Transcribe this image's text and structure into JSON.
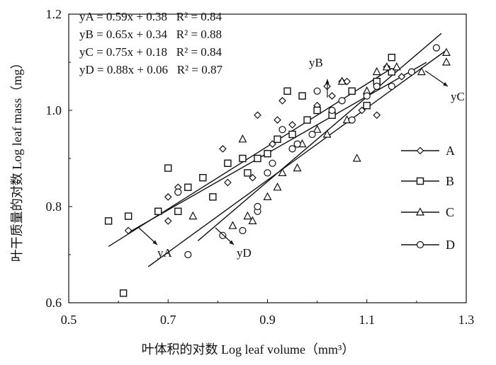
{
  "chart_data": {
    "type": "scatter",
    "xlabel": "叶体积的对数  Log leaf volume（mm³）",
    "ylabel": "叶干质量的对数  Log leaf mass（mg）",
    "xlim": [
      0.5,
      1.3
    ],
    "ylim": [
      0.6,
      1.2
    ],
    "x_ticks": [
      "0.5",
      "0.7",
      "0.9",
      "1.1",
      "1.3"
    ],
    "y_ticks": [
      "0.6",
      "0.8",
      "1.0",
      "1.2"
    ],
    "equations": [
      "yA = 0.59x + 0.38   R² = 0.84",
      "yB = 0.65x + 0.34   R² = 0.88",
      "yC = 0.75x + 0.18   R² = 0.84",
      "yD = 0.88x + 0.06   R² = 0.87"
    ],
    "fit_lines": [
      {
        "label": "yA",
        "slope": 0.59,
        "intercept": 0.38,
        "x_range": [
          0.62,
          1.22
        ]
      },
      {
        "label": "yB",
        "slope": 0.65,
        "intercept": 0.34,
        "x_range": [
          0.58,
          1.15
        ]
      },
      {
        "label": "yC",
        "slope": 0.75,
        "intercept": 0.18,
        "x_range": [
          0.66,
          1.26
        ]
      },
      {
        "label": "yD",
        "slope": 0.88,
        "intercept": 0.06,
        "x_range": [
          0.76,
          1.25
        ]
      }
    ],
    "line_labels": [
      "yA",
      "yB",
      "yC",
      "yD"
    ],
    "legend": [
      "A",
      "B",
      "C",
      "D"
    ],
    "legend_position": "right",
    "series": [
      {
        "name": "A",
        "marker": "diamond",
        "points": [
          [
            0.62,
            0.75
          ],
          [
            0.7,
            0.77
          ],
          [
            0.7,
            0.82
          ],
          [
            0.72,
            0.84
          ],
          [
            0.81,
            0.92
          ],
          [
            0.82,
            0.85
          ],
          [
            0.85,
            0.9
          ],
          [
            0.87,
            0.86
          ],
          [
            0.88,
            0.99
          ],
          [
            0.91,
            0.93
          ],
          [
            0.92,
            0.98
          ],
          [
            0.93,
            1.02
          ],
          [
            0.95,
            0.97
          ],
          [
            0.97,
            1.03
          ],
          [
            1.0,
            1.01
          ],
          [
            1.02,
            1.05
          ],
          [
            1.03,
            1.03
          ],
          [
            1.05,
            1.06
          ],
          [
            1.06,
            1.06
          ],
          [
            1.09,
            1.0
          ],
          [
            1.12,
            0.99
          ],
          [
            1.14,
            1.09
          ],
          [
            1.17,
            1.07
          ]
        ]
      },
      {
        "name": "B",
        "marker": "square",
        "points": [
          [
            0.58,
            0.77
          ],
          [
            0.61,
            0.62
          ],
          [
            0.62,
            0.78
          ],
          [
            0.68,
            0.79
          ],
          [
            0.7,
            0.88
          ],
          [
            0.72,
            0.79
          ],
          [
            0.74,
            0.84
          ],
          [
            0.77,
            0.86
          ],
          [
            0.79,
            0.82
          ],
          [
            0.82,
            0.89
          ],
          [
            0.85,
            0.9
          ],
          [
            0.86,
            0.87
          ],
          [
            0.88,
            0.9
          ],
          [
            0.9,
            0.91
          ],
          [
            0.92,
            0.94
          ],
          [
            0.94,
            1.04
          ],
          [
            0.95,
            0.95
          ],
          [
            0.97,
            1.03
          ],
          [
            0.98,
            0.98
          ],
          [
            1.0,
            1.0
          ],
          [
            1.03,
            0.99
          ],
          [
            1.07,
            1.04
          ],
          [
            1.1,
            1.01
          ],
          [
            1.12,
            1.06
          ],
          [
            1.15,
            1.11
          ],
          [
            1.15,
            1.08
          ]
        ]
      },
      {
        "name": "C",
        "marker": "triangle",
        "points": [
          [
            0.75,
            0.78
          ],
          [
            0.83,
            0.76
          ],
          [
            0.85,
            0.94
          ],
          [
            0.86,
            0.78
          ],
          [
            0.87,
            0.77
          ],
          [
            0.9,
            0.82
          ],
          [
            0.92,
            0.84
          ],
          [
            0.93,
            0.87
          ],
          [
            0.96,
            0.88
          ],
          [
            0.97,
            0.93
          ],
          [
            1.0,
            0.96
          ],
          [
            1.02,
            0.95
          ],
          [
            1.05,
            1.06
          ],
          [
            1.06,
            0.98
          ],
          [
            1.08,
            0.9
          ],
          [
            1.1,
            1.04
          ],
          [
            1.12,
            1.08
          ],
          [
            1.14,
            1.09
          ],
          [
            1.16,
            1.09
          ],
          [
            1.21,
            1.08
          ],
          [
            1.26,
            1.1
          ],
          [
            1.26,
            1.12
          ]
        ]
      },
      {
        "name": "D",
        "marker": "circle",
        "points": [
          [
            0.72,
            0.83
          ],
          [
            0.74,
            0.7
          ],
          [
            0.81,
            0.74
          ],
          [
            0.85,
            0.75
          ],
          [
            0.88,
            0.79
          ],
          [
            0.88,
            0.8
          ],
          [
            0.9,
            0.87
          ],
          [
            0.91,
            0.89
          ],
          [
            0.93,
            0.96
          ],
          [
            0.95,
            0.92
          ],
          [
            0.96,
            0.93
          ],
          [
            0.99,
            0.95
          ],
          [
            1.0,
            1.04
          ],
          [
            1.03,
            1.0
          ],
          [
            1.05,
            1.02
          ],
          [
            1.07,
            0.98
          ],
          [
            1.1,
            1.03
          ],
          [
            1.12,
            1.05
          ],
          [
            1.15,
            1.05
          ],
          [
            1.19,
            1.08
          ],
          [
            1.24,
            1.13
          ]
        ]
      }
    ]
  }
}
